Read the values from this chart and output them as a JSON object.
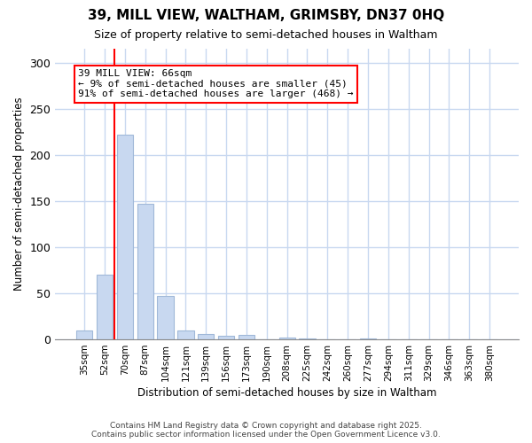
{
  "title": "39, MILL VIEW, WALTHAM, GRIMSBY, DN37 0HQ",
  "subtitle": "Size of property relative to semi-detached houses in Waltham",
  "xlabel": "Distribution of semi-detached houses by size in Waltham",
  "ylabel": "Number of semi-detached properties",
  "categories": [
    "35sqm",
    "52sqm",
    "70sqm",
    "87sqm",
    "104sqm",
    "121sqm",
    "139sqm",
    "156sqm",
    "173sqm",
    "190sqm",
    "208sqm",
    "225sqm",
    "242sqm",
    "260sqm",
    "277sqm",
    "294sqm",
    "311sqm",
    "329sqm",
    "346sqm",
    "363sqm",
    "380sqm"
  ],
  "values": [
    10,
    70,
    222,
    147,
    47,
    10,
    6,
    4,
    5,
    0,
    2,
    1,
    0,
    0,
    1,
    0,
    0,
    0,
    0,
    0,
    0
  ],
  "bar_color": "#c8d8f0",
  "bar_edgecolor": "#a0b8d8",
  "redline_x": 1.5,
  "annotation_line1": "39 MILL VIEW: 66sqm",
  "annotation_line2": "← 9% of semi-detached houses are smaller (45)",
  "annotation_line3": "91% of semi-detached houses are larger (468) →",
  "ylim": [
    0,
    315
  ],
  "yticks": [
    0,
    50,
    100,
    150,
    200,
    250,
    300
  ],
  "background_color": "#ffffff",
  "grid_color": "#c8d8f0",
  "footer_line1": "Contains HM Land Registry data © Crown copyright and database right 2025.",
  "footer_line2": "Contains public sector information licensed under the Open Government Licence v3.0."
}
